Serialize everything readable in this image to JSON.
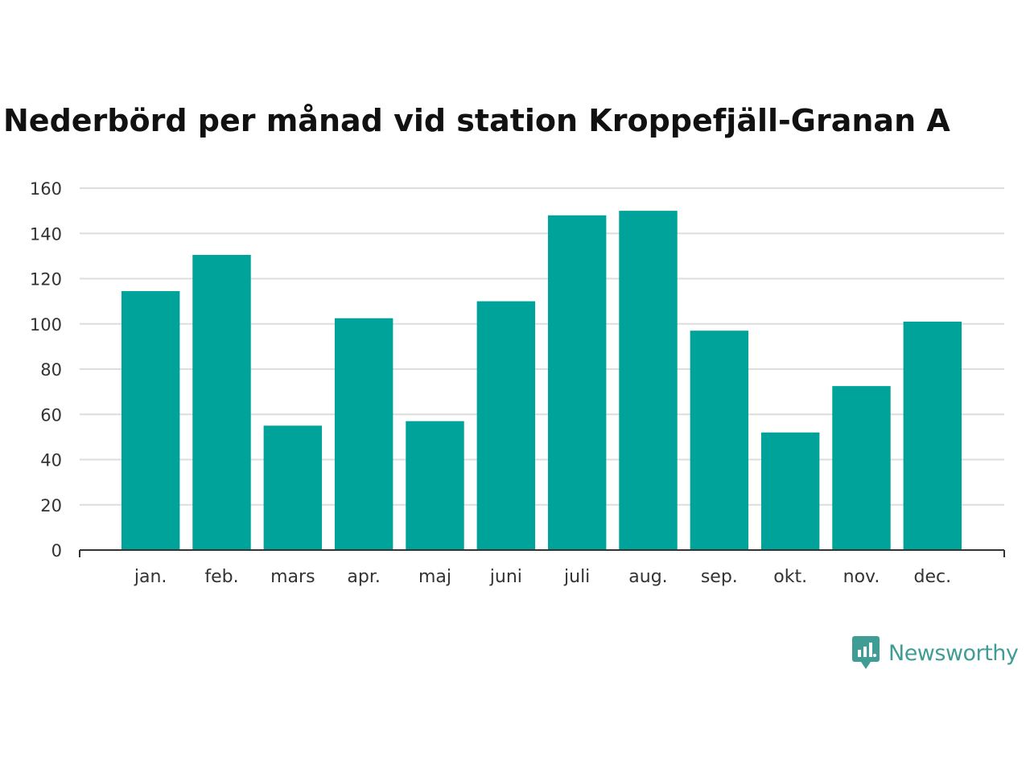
{
  "chart_data": {
    "type": "bar",
    "title": "Nederbörd per månad vid station Kroppefjäll-Granan A",
    "xlabel": "",
    "ylabel": "",
    "categories": [
      "jan.",
      "feb.",
      "mars",
      "apr.",
      "maj",
      "juni",
      "juli",
      "aug.",
      "sep.",
      "okt.",
      "nov.",
      "dec."
    ],
    "values": [
      114.5,
      130.5,
      55,
      102.5,
      57,
      110,
      148,
      150,
      97,
      52,
      72.5,
      101
    ],
    "ylim": [
      0,
      160
    ],
    "yticks": [
      0,
      20,
      40,
      60,
      80,
      100,
      120,
      140,
      160
    ],
    "grid": true,
    "legend": "none",
    "bar_color": "#00a39a",
    "grid_color": "#dddddd",
    "axis_color": "#333333"
  },
  "brand": {
    "name": "Newsworthy",
    "icon": "bar-chart-speech-bubble-icon",
    "color": "#3f9d96"
  }
}
